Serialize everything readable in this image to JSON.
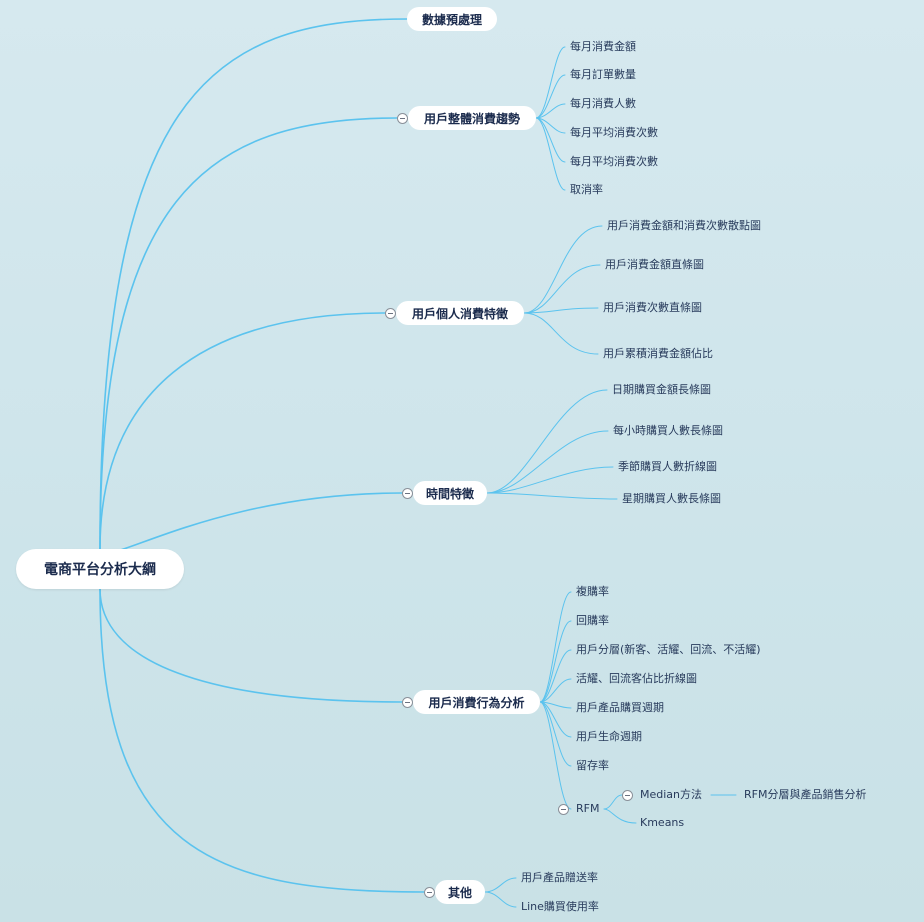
{
  "root": "電商平台分析大綱",
  "branches": [
    {
      "label": "數據預處理"
    },
    {
      "label": "用戶整體消費趨勢",
      "children": [
        "每月消費金額",
        "每月訂單數量",
        "每月消費人數",
        "每月平均消費次數",
        "每月平均消費次數",
        "取消率"
      ]
    },
    {
      "label": "用戶個人消費特徵",
      "children": [
        "用戶消費金額和消費次數散點圖",
        "用戶消費金額直條圖",
        "用戶消費次數直條圖",
        "用戶累積消費金額佔比"
      ]
    },
    {
      "label": "時間特徵",
      "children": [
        "日期購買金額長條圖",
        "每小時購買人數長條圖",
        "季節購買人數折線圖",
        "星期購買人數長條圖"
      ]
    },
    {
      "label": "用戶消費行為分析",
      "children": [
        "複購率",
        "回購率",
        "用戶分層(新客、活耀、回流、不活耀)",
        "活耀、回流客佔比折線圖",
        "用戶產品購買週期",
        "用戶生命週期",
        "留存率"
      ],
      "rfm": {
        "label": "RFM",
        "median": "Median方法",
        "median_child": "RFM分層與產品銷售分析",
        "kmeans": "Kmeans"
      }
    },
    {
      "label": "其他",
      "children": [
        "用戶產品贈送率",
        "Line購買使用率"
      ]
    }
  ],
  "colors": {
    "line": "#5bc3ee",
    "text": "#1b2b4d"
  }
}
